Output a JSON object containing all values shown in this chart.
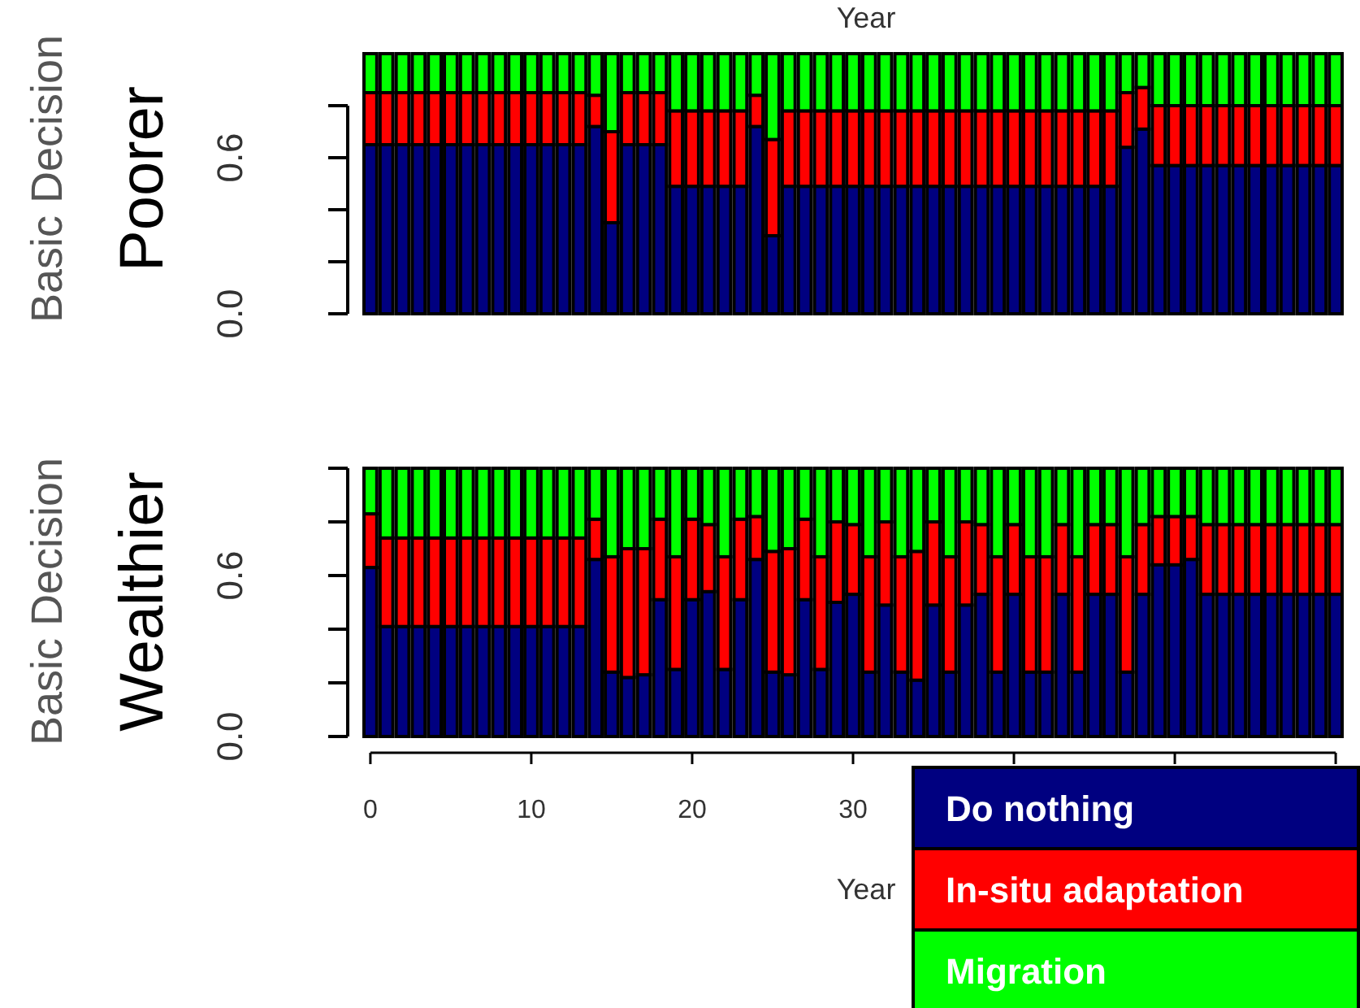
{
  "chart_data": [
    {
      "type": "bar",
      "stacked": true,
      "xlabel": "Year",
      "ylabel": "Basic Decision",
      "annotations": [
        "Poorer"
      ],
      "tick_labels": "y",
      "x": [
        0,
        1,
        2,
        3,
        4,
        5,
        6,
        7,
        8,
        9,
        10,
        11,
        12,
        13,
        14,
        15,
        16,
        17,
        18,
        19,
        20,
        21,
        22,
        23,
        24,
        25,
        26,
        27,
        28,
        29,
        30,
        31,
        32,
        33,
        34,
        35,
        36,
        37,
        38,
        39,
        40,
        41,
        42,
        43,
        44,
        45,
        46,
        47,
        48,
        49,
        50,
        51,
        52,
        53,
        54,
        55,
        56,
        57,
        58,
        59,
        60
      ],
      "xlim": [
        -0.5,
        60.5
      ],
      "ylim": [
        0,
        1
      ],
      "yticks": [
        {
          "value": 0,
          "label": "0.0"
        },
        {
          "value": 0.2,
          "label": null
        },
        {
          "value": 0.4,
          "label": null
        },
        {
          "value": 0.6,
          "label": "0.6"
        },
        {
          "value": 0.8,
          "label": null
        }
      ],
      "series": [
        {
          "color": "#000080",
          "values": [
            0.65,
            0.65,
            0.65,
            0.65,
            0.65,
            0.65,
            0.65,
            0.65,
            0.65,
            0.65,
            0.65,
            0.65,
            0.65,
            0.65,
            0.72,
            0.35,
            0.65,
            0.65,
            0.65,
            0.49,
            0.49,
            0.49,
            0.49,
            0.49,
            0.72,
            0.3,
            0.49,
            0.49,
            0.49,
            0.49,
            0.49,
            0.49,
            0.49,
            0.49,
            0.49,
            0.49,
            0.49,
            0.49,
            0.49,
            0.49,
            0.49,
            0.49,
            0.49,
            0.49,
            0.49,
            0.49,
            0.49,
            0.64,
            0.71,
            0.57,
            0.57,
            0.57,
            0.57,
            0.57,
            0.57,
            0.57,
            0.57,
            0.57,
            0.57,
            0.57,
            0.57
          ]
        },
        {
          "color": "#ff0000",
          "values": [
            0.2,
            0.2,
            0.2,
            0.2,
            0.2,
            0.2,
            0.2,
            0.2,
            0.2,
            0.2,
            0.2,
            0.2,
            0.2,
            0.2,
            0.12,
            0.35,
            0.2,
            0.2,
            0.2,
            0.29,
            0.29,
            0.29,
            0.29,
            0.29,
            0.12,
            0.37,
            0.29,
            0.29,
            0.29,
            0.29,
            0.29,
            0.29,
            0.29,
            0.29,
            0.29,
            0.29,
            0.29,
            0.29,
            0.29,
            0.29,
            0.29,
            0.29,
            0.29,
            0.29,
            0.29,
            0.29,
            0.29,
            0.21,
            0.16,
            0.23,
            0.23,
            0.23,
            0.23,
            0.23,
            0.23,
            0.23,
            0.23,
            0.23,
            0.23,
            0.23,
            0.23
          ]
        },
        {
          "color": "#00ff00",
          "values": [
            0.15,
            0.15,
            0.15,
            0.15,
            0.15,
            0.15,
            0.15,
            0.15,
            0.15,
            0.15,
            0.15,
            0.15,
            0.15,
            0.15,
            0.16,
            0.3,
            0.15,
            0.15,
            0.15,
            0.22,
            0.22,
            0.22,
            0.22,
            0.22,
            0.16,
            0.33,
            0.22,
            0.22,
            0.22,
            0.22,
            0.22,
            0.22,
            0.22,
            0.22,
            0.22,
            0.22,
            0.22,
            0.22,
            0.22,
            0.22,
            0.22,
            0.22,
            0.22,
            0.22,
            0.22,
            0.22,
            0.22,
            0.15,
            0.13,
            0.2,
            0.2,
            0.2,
            0.2,
            0.2,
            0.2,
            0.2,
            0.2,
            0.2,
            0.2,
            0.2,
            0.2
          ]
        }
      ]
    },
    {
      "type": "bar",
      "stacked": true,
      "xlabel": "Year",
      "ylabel": "Basic Decision",
      "annotations": [
        "Wealthier"
      ],
      "legend": "bottom right",
      "x": [
        0,
        1,
        2,
        3,
        4,
        5,
        6,
        7,
        8,
        9,
        10,
        11,
        12,
        13,
        14,
        15,
        16,
        17,
        18,
        19,
        20,
        21,
        22,
        23,
        24,
        25,
        26,
        27,
        28,
        29,
        30,
        31,
        32,
        33,
        34,
        35,
        36,
        37,
        38,
        39,
        40,
        41,
        42,
        43,
        44,
        45,
        46,
        47,
        48,
        49,
        50,
        51,
        52,
        53,
        54,
        55,
        56,
        57,
        58,
        59,
        60
      ],
      "xlim": [
        -0.5,
        60.5
      ],
      "xticks": [
        0,
        10,
        20,
        30,
        {
          "value": 40,
          "label": null
        },
        {
          "value": 50,
          "label": null
        },
        {
          "value": 60,
          "label": null
        }
      ],
      "ylim": [
        0,
        1
      ],
      "yticks": [
        {
          "value": 0,
          "label": "0.0"
        },
        {
          "value": 0.2,
          "label": null
        },
        {
          "value": 0.4,
          "label": null
        },
        {
          "value": 0.6,
          "label": "0.6"
        },
        {
          "value": 0.8,
          "label": null
        },
        {
          "value": 1,
          "label": null
        }
      ],
      "series": [
        {
          "name": "Do nothing",
          "color": "#000080",
          "values": [
            0.63,
            0.41,
            0.41,
            0.41,
            0.41,
            0.41,
            0.41,
            0.41,
            0.41,
            0.41,
            0.41,
            0.41,
            0.41,
            0.41,
            0.66,
            0.24,
            0.22,
            0.23,
            0.51,
            0.25,
            0.51,
            0.54,
            0.25,
            0.51,
            0.66,
            0.24,
            0.23,
            0.51,
            0.25,
            0.5,
            0.53,
            0.24,
            0.49,
            0.24,
            0.21,
            0.49,
            0.24,
            0.49,
            0.53,
            0.24,
            0.53,
            0.24,
            0.24,
            0.53,
            0.24,
            0.53,
            0.53,
            0.24,
            0.53,
            0.64,
            0.64,
            0.66,
            0.53,
            0.53,
            0.53,
            0.53,
            0.53,
            0.53,
            0.53,
            0.53,
            0.53
          ]
        },
        {
          "name": "In-situ adaptation",
          "color": "#ff0000",
          "values": [
            0.2,
            0.33,
            0.33,
            0.33,
            0.33,
            0.33,
            0.33,
            0.33,
            0.33,
            0.33,
            0.33,
            0.33,
            0.33,
            0.33,
            0.15,
            0.43,
            0.48,
            0.47,
            0.3,
            0.42,
            0.3,
            0.25,
            0.42,
            0.3,
            0.16,
            0.45,
            0.47,
            0.3,
            0.42,
            0.3,
            0.26,
            0.43,
            0.31,
            0.43,
            0.48,
            0.31,
            0.43,
            0.31,
            0.26,
            0.43,
            0.26,
            0.43,
            0.43,
            0.26,
            0.43,
            0.26,
            0.26,
            0.43,
            0.26,
            0.18,
            0.18,
            0.16,
            0.26,
            0.26,
            0.26,
            0.26,
            0.26,
            0.26,
            0.26,
            0.26,
            0.26
          ]
        },
        {
          "name": "Migration",
          "color": "#00ff00",
          "values": [
            0.17,
            0.26,
            0.26,
            0.26,
            0.26,
            0.26,
            0.26,
            0.26,
            0.26,
            0.26,
            0.26,
            0.26,
            0.26,
            0.26,
            0.19,
            0.33,
            0.3,
            0.3,
            0.19,
            0.33,
            0.19,
            0.21,
            0.33,
            0.19,
            0.18,
            0.31,
            0.3,
            0.19,
            0.33,
            0.2,
            0.21,
            0.33,
            0.2,
            0.33,
            0.31,
            0.2,
            0.33,
            0.2,
            0.21,
            0.33,
            0.21,
            0.33,
            0.33,
            0.21,
            0.33,
            0.21,
            0.21,
            0.33,
            0.21,
            0.18,
            0.18,
            0.18,
            0.21,
            0.21,
            0.21,
            0.21,
            0.21,
            0.21,
            0.21,
            0.21,
            0.21
          ]
        }
      ]
    }
  ]
}
